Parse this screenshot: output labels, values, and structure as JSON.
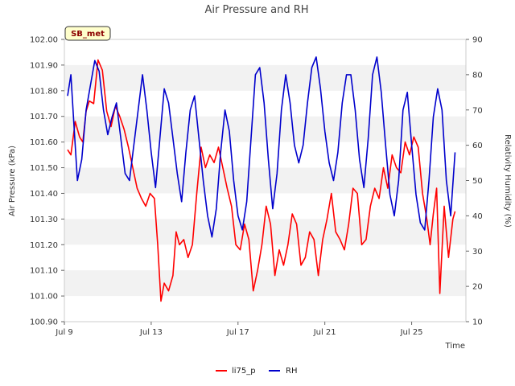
{
  "chart_data": {
    "type": "line",
    "title": "Air Pressure and RH",
    "badge": "SB_met",
    "xlabel": "Time",
    "ylabel_left": "Air Pressure (kPa)",
    "ylabel_right": "Relativity Humidity (%)",
    "x_unit": "days since Jul 9",
    "xlim": [
      0,
      18.5
    ],
    "ylim_left": [
      100.9,
      102.0
    ],
    "ylim_right": [
      10,
      90
    ],
    "x_ticks": [
      {
        "x": 0,
        "label": "Jul 9"
      },
      {
        "x": 4,
        "label": "Jul 13"
      },
      {
        "x": 8,
        "label": "Jul 17"
      },
      {
        "x": 12,
        "label": "Jul 21"
      },
      {
        "x": 16,
        "label": "Jul 25"
      }
    ],
    "y_left_ticks": [
      "100.90",
      "101.00",
      "101.10",
      "101.20",
      "101.30",
      "101.40",
      "101.50",
      "101.60",
      "101.70",
      "101.80",
      "101.90",
      "102.00"
    ],
    "y_right_ticks": [
      "10",
      "20",
      "30",
      "40",
      "50",
      "60",
      "70",
      "80",
      "90"
    ],
    "grid": "horizontal bands",
    "colors": {
      "li75_p": "#ff0000",
      "RH": "#0000cc",
      "band": "#f2f2f2",
      "badge_bg": "#ffffcc"
    },
    "series": [
      {
        "name": "li75_p",
        "axis": "left",
        "x": [
          0.15,
          0.3,
          0.5,
          0.7,
          0.85,
          1.0,
          1.15,
          1.35,
          1.55,
          1.75,
          1.95,
          2.15,
          2.35,
          2.55,
          2.75,
          2.95,
          3.15,
          3.35,
          3.55,
          3.75,
          3.95,
          4.15,
          4.3,
          4.45,
          4.6,
          4.8,
          5.0,
          5.15,
          5.3,
          5.5,
          5.7,
          5.9,
          6.1,
          6.3,
          6.5,
          6.7,
          6.9,
          7.1,
          7.3,
          7.5,
          7.7,
          7.9,
          8.1,
          8.3,
          8.5,
          8.7,
          8.9,
          9.1,
          9.3,
          9.5,
          9.7,
          9.9,
          10.1,
          10.3,
          10.5,
          10.7,
          10.9,
          11.1,
          11.3,
          11.5,
          11.7,
          11.9,
          12.1,
          12.3,
          12.5,
          12.7,
          12.9,
          13.1,
          13.3,
          13.5,
          13.7,
          13.9,
          14.1,
          14.3,
          14.5,
          14.7,
          14.9,
          15.1,
          15.3,
          15.5,
          15.7,
          15.9,
          16.1,
          16.3,
          16.5,
          16.7,
          16.85,
          17.0,
          17.15,
          17.3,
          17.5,
          17.7,
          17.9,
          18.0
        ],
        "values": [
          101.57,
          101.55,
          101.68,
          101.62,
          101.6,
          101.72,
          101.76,
          101.75,
          101.92,
          101.88,
          101.72,
          101.66,
          101.74,
          101.7,
          101.65,
          101.58,
          101.5,
          101.42,
          101.38,
          101.35,
          101.4,
          101.38,
          101.2,
          100.98,
          101.05,
          101.02,
          101.08,
          101.25,
          101.2,
          101.22,
          101.15,
          101.2,
          101.4,
          101.58,
          101.5,
          101.55,
          101.52,
          101.58,
          101.5,
          101.42,
          101.35,
          101.2,
          101.18,
          101.28,
          101.22,
          101.02,
          101.1,
          101.2,
          101.35,
          101.28,
          101.08,
          101.18,
          101.12,
          101.2,
          101.32,
          101.28,
          101.12,
          101.15,
          101.25,
          101.22,
          101.08,
          101.22,
          101.3,
          101.4,
          101.25,
          101.22,
          101.18,
          101.28,
          101.42,
          101.4,
          101.2,
          101.22,
          101.35,
          101.42,
          101.38,
          101.5,
          101.42,
          101.55,
          101.5,
          101.48,
          101.6,
          101.55,
          101.62,
          101.58,
          101.4,
          101.3,
          101.2,
          101.32,
          101.42,
          101.01,
          101.35,
          101.15,
          101.3,
          101.33
        ]
      },
      {
        "name": "RH",
        "axis": "right",
        "x": [
          0.15,
          0.3,
          0.45,
          0.6,
          0.8,
          1.0,
          1.2,
          1.4,
          1.6,
          1.8,
          2.0,
          2.2,
          2.4,
          2.6,
          2.8,
          3.0,
          3.2,
          3.4,
          3.6,
          3.8,
          4.0,
          4.2,
          4.4,
          4.6,
          4.8,
          5.0,
          5.2,
          5.4,
          5.6,
          5.8,
          6.0,
          6.2,
          6.4,
          6.6,
          6.8,
          7.0,
          7.2,
          7.4,
          7.6,
          7.8,
          8.0,
          8.2,
          8.4,
          8.6,
          8.8,
          9.0,
          9.2,
          9.4,
          9.6,
          9.8,
          10.0,
          10.2,
          10.4,
          10.6,
          10.8,
          11.0,
          11.2,
          11.4,
          11.6,
          11.8,
          12.0,
          12.2,
          12.4,
          12.6,
          12.8,
          13.0,
          13.2,
          13.4,
          13.6,
          13.8,
          14.0,
          14.2,
          14.4,
          14.6,
          14.8,
          15.0,
          15.2,
          15.4,
          15.6,
          15.8,
          16.0,
          16.2,
          16.4,
          16.6,
          16.8,
          17.0,
          17.2,
          17.4,
          17.6,
          17.8,
          18.0
        ],
        "values": [
          74,
          80,
          65,
          50,
          56,
          70,
          77,
          84,
          81,
          70,
          63,
          68,
          72,
          62,
          52,
          50,
          60,
          70,
          80,
          70,
          58,
          48,
          62,
          76,
          72,
          62,
          52,
          44,
          58,
          70,
          74,
          62,
          50,
          40,
          34,
          42,
          58,
          70,
          64,
          50,
          40,
          36,
          44,
          62,
          80,
          82,
          72,
          56,
          42,
          52,
          70,
          80,
          72,
          60,
          55,
          60,
          72,
          82,
          85,
          76,
          64,
          55,
          50,
          58,
          72,
          80,
          80,
          70,
          56,
          48,
          62,
          80,
          85,
          75,
          60,
          46,
          40,
          50,
          70,
          75,
          60,
          46,
          38,
          36,
          50,
          68,
          76,
          70,
          50,
          40,
          58
        ]
      }
    ],
    "legend": [
      {
        "label": "li75_p",
        "color": "#ff0000"
      },
      {
        "label": "RH",
        "color": "#0000cc"
      }
    ],
    "legend_position": "bottom-center"
  }
}
